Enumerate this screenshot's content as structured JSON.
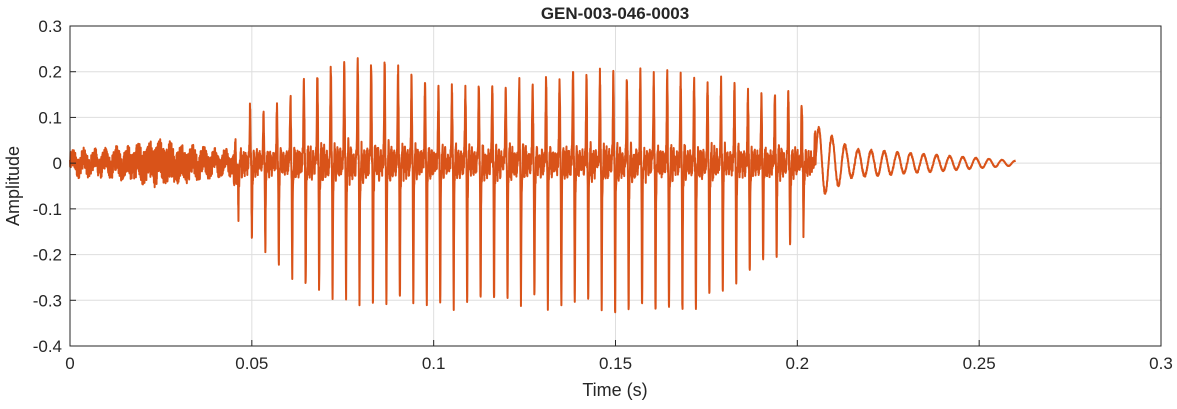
{
  "chart_data": {
    "type": "line",
    "title": "GEN-003-046-0003",
    "xlabel": "Time (s)",
    "ylabel": "Amplitude",
    "xlim": [
      0,
      0.3
    ],
    "ylim": [
      -0.4,
      0.3
    ],
    "xticks": [
      0,
      0.05,
      0.1,
      0.15,
      0.2,
      0.25,
      0.3
    ],
    "xtick_labels": [
      "0",
      "0.05",
      "0.1",
      "0.15",
      "0.2",
      "0.25",
      "0.3"
    ],
    "yticks": [
      -0.4,
      -0.3,
      -0.2,
      -0.1,
      0,
      0.1,
      0.2,
      0.3
    ],
    "ytick_labels": [
      "-0.4",
      "-0.3",
      "-0.2",
      "-0.1",
      "0",
      "0.1",
      "0.2",
      "0.3"
    ],
    "grid": true,
    "line_color": "#D95319",
    "signal_end_time": 0.26,
    "noise_segment": {
      "start": 0,
      "end": 0.045,
      "max": 0.08,
      "min": -0.07
    },
    "voiced_segment": {
      "start": 0.046,
      "end": 0.205,
      "pulse_period_s": 0.0037
    },
    "envelope": [
      {
        "t": 0.046,
        "max": 0.14,
        "min": -0.12
      },
      {
        "t": 0.055,
        "max": 0.11,
        "min": -0.22
      },
      {
        "t": 0.065,
        "max": 0.19,
        "min": -0.3
      },
      {
        "t": 0.075,
        "max": 0.23,
        "min": -0.31
      },
      {
        "t": 0.085,
        "max": 0.23,
        "min": -0.33
      },
      {
        "t": 0.1,
        "max": 0.16,
        "min": -0.33
      },
      {
        "t": 0.12,
        "max": 0.18,
        "min": -0.32
      },
      {
        "t": 0.14,
        "max": 0.2,
        "min": -0.33
      },
      {
        "t": 0.16,
        "max": 0.2,
        "min": -0.35
      },
      {
        "t": 0.17,
        "max": 0.19,
        "min": -0.35
      },
      {
        "t": 0.18,
        "max": 0.18,
        "min": -0.3
      },
      {
        "t": 0.19,
        "max": 0.15,
        "min": -0.25
      },
      {
        "t": 0.2,
        "max": 0.16,
        "min": -0.2
      },
      {
        "t": 0.205,
        "max": 0.08,
        "min": -0.1
      },
      {
        "t": 0.215,
        "max": 0.03,
        "min": -0.04
      },
      {
        "t": 0.26,
        "max": 0.005,
        "min": -0.005
      }
    ]
  }
}
